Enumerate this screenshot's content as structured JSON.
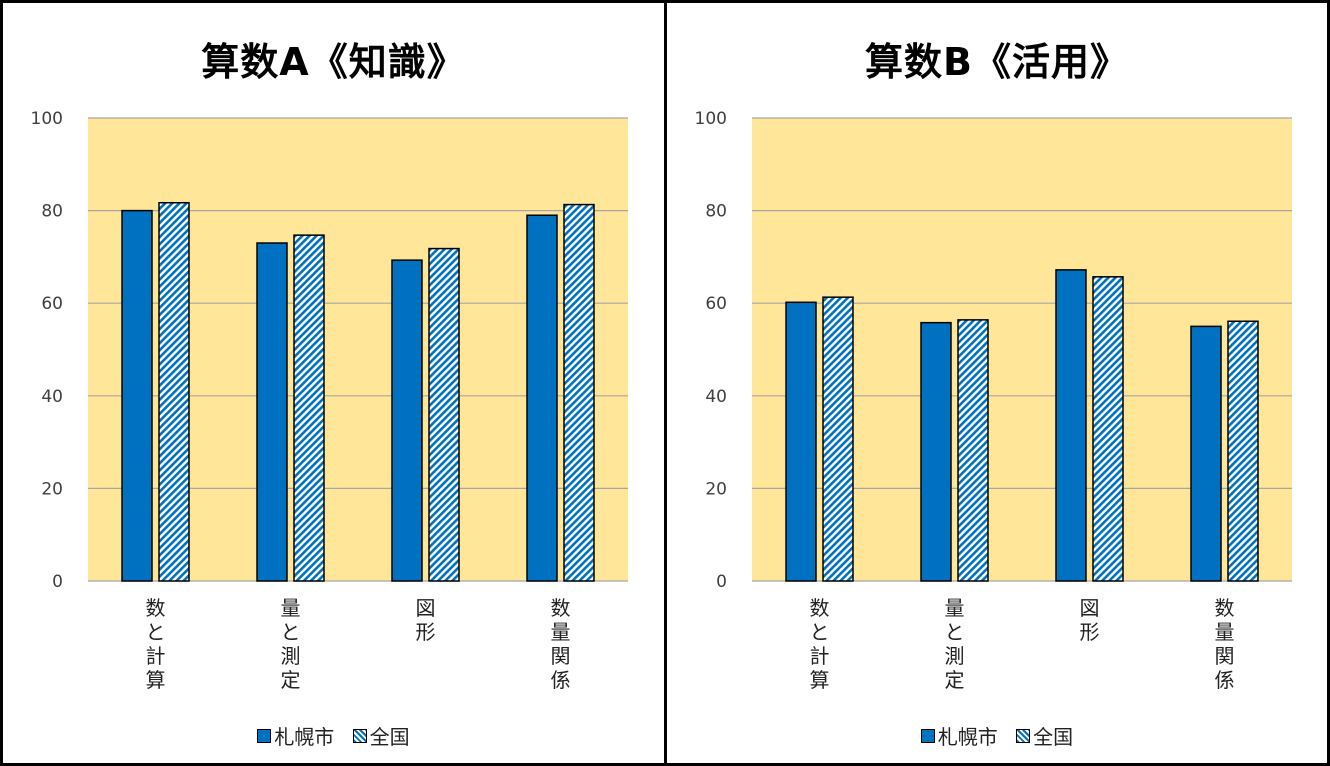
{
  "chart_data": [
    {
      "type": "bar",
      "title": "算数A《知識》",
      "categories": [
        "数と計算",
        "量と測定",
        "図形",
        "数量関係"
      ],
      "series": [
        {
          "name": "札幌市",
          "values": [
            80.0,
            73.0,
            69.3,
            79.0
          ]
        },
        {
          "name": "全国",
          "values": [
            81.7,
            74.7,
            71.8,
            81.3
          ]
        }
      ],
      "ylim": [
        0,
        100
      ],
      "yticks": [
        0,
        20,
        40,
        60,
        80,
        100
      ],
      "grid": true,
      "legend": "bottom",
      "colors": {
        "plot_bg": "#ffe699",
        "bar": "#0070c0"
      }
    },
    {
      "type": "bar",
      "title": "算数B《活用》",
      "categories": [
        "数と計算",
        "量と測定",
        "図形",
        "数量関係"
      ],
      "series": [
        {
          "name": "札幌市",
          "values": [
            60.2,
            55.8,
            67.2,
            55.0
          ]
        },
        {
          "name": "全国",
          "values": [
            61.3,
            56.4,
            65.7,
            56.1
          ]
        }
      ],
      "ylim": [
        0,
        100
      ],
      "yticks": [
        0,
        20,
        40,
        60,
        80,
        100
      ],
      "grid": true,
      "legend": "bottom",
      "colors": {
        "plot_bg": "#ffe699",
        "bar": "#0070c0"
      }
    }
  ]
}
